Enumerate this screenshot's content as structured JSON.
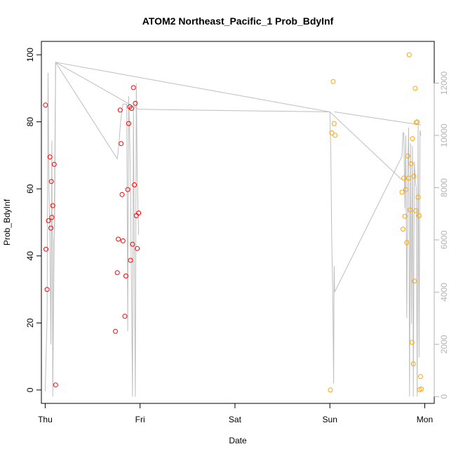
{
  "chart_data": {
    "type": "scatter",
    "title": "ATOM2 Northeast_Pacific_1 Prob_BdyInf",
    "xlabel": "Date",
    "ylabel": "Prob_BdyInf",
    "x_ticks": [
      {
        "label": "Thu",
        "day": 0
      },
      {
        "label": "Fri",
        "day": 1
      },
      {
        "label": "Sat",
        "day": 2
      },
      {
        "label": "Sun",
        "day": 3
      },
      {
        "label": "Mon",
        "day": 4
      }
    ],
    "xlim": [
      -0.04,
      4.1
    ],
    "ylim": [
      -4,
      104
    ],
    "y_ticks": [
      0,
      20,
      40,
      60,
      80,
      100
    ],
    "y2lim": [
      -260,
      13600
    ],
    "y2_ticks": [
      0,
      2000,
      4000,
      6000,
      8000,
      10000,
      12000
    ],
    "grid": false,
    "colors": {
      "red_points": "#ff0000",
      "orange_points": "#ffa500",
      "line": "#bebebe",
      "right_axis": "#b3b3b3"
    },
    "series": [
      {
        "color": "#ff0000",
        "points": [
          [
            0.003,
            85
          ],
          [
            0.008,
            42
          ],
          [
            0.02,
            30
          ],
          [
            0.035,
            50.5
          ],
          [
            0.05,
            69.5
          ],
          [
            0.06,
            48.3
          ],
          [
            0.065,
            62.2
          ],
          [
            0.07,
            51.5
          ],
          [
            0.08,
            55
          ],
          [
            0.095,
            67.3
          ],
          [
            0.11,
            1.5
          ],
          [
            0.74,
            17.5
          ],
          [
            0.76,
            35
          ],
          [
            0.77,
            45
          ],
          [
            0.79,
            83.5
          ],
          [
            0.8,
            73.5
          ],
          [
            0.81,
            58.3
          ],
          [
            0.82,
            44.5
          ],
          [
            0.84,
            22
          ],
          [
            0.85,
            34
          ],
          [
            0.87,
            59.8
          ],
          [
            0.88,
            79.5
          ],
          [
            0.89,
            84.5
          ],
          [
            0.9,
            38.7
          ],
          [
            0.91,
            84
          ],
          [
            0.92,
            43.5
          ],
          [
            0.93,
            90.2
          ],
          [
            0.94,
            61.2
          ],
          [
            0.95,
            85.5
          ],
          [
            0.96,
            52
          ],
          [
            0.97,
            42.2
          ],
          [
            0.985,
            52.8
          ]
        ]
      },
      {
        "color": "#ffa500",
        "points": [
          [
            3.005,
            0
          ],
          [
            3.02,
            76.7
          ],
          [
            3.035,
            92
          ],
          [
            3.045,
            79.5
          ],
          [
            3.055,
            76
          ],
          [
            3.76,
            59
          ],
          [
            3.77,
            48
          ],
          [
            3.78,
            63.2
          ],
          [
            3.79,
            51.8
          ],
          [
            3.8,
            59.8
          ],
          [
            3.81,
            44
          ],
          [
            3.82,
            69.8
          ],
          [
            3.83,
            63.2
          ],
          [
            3.835,
            100
          ],
          [
            3.845,
            53.7
          ],
          [
            3.855,
            67.5
          ],
          [
            3.865,
            14.2
          ],
          [
            3.87,
            75
          ],
          [
            3.88,
            7.8
          ],
          [
            3.885,
            63.8
          ],
          [
            3.89,
            32.5
          ],
          [
            3.9,
            90
          ],
          [
            3.905,
            53.5
          ],
          [
            3.91,
            79.8
          ],
          [
            3.92,
            80
          ],
          [
            3.93,
            57.5
          ],
          [
            3.94,
            52
          ],
          [
            3.945,
            0.1
          ],
          [
            3.955,
            4
          ],
          [
            3.965,
            0.3
          ]
        ]
      }
    ],
    "line_series": {
      "color": "#bebebe",
      "axis": "right",
      "points": [
        [
          0.0,
          200
        ],
        [
          0.02,
          3000
        ],
        [
          0.03,
          12400
        ],
        [
          0.04,
          8000
        ],
        [
          0.05,
          6000
        ],
        [
          0.06,
          2000
        ],
        [
          0.07,
          9800
        ],
        [
          0.08,
          400
        ],
        [
          0.09,
          6000
        ],
        [
          0.1,
          6500
        ],
        [
          0.11,
          12800
        ],
        [
          0.76,
          9100
        ],
        [
          0.78,
          9800
        ],
        [
          0.79,
          10300
        ],
        [
          0.8,
          10700
        ],
        [
          0.82,
          11200
        ],
        [
          0.86,
          11200
        ],
        [
          0.87,
          2500
        ],
        [
          0.88,
          11500
        ],
        [
          0.89,
          10000
        ],
        [
          0.9,
          8000
        ],
        [
          0.91,
          4000
        ],
        [
          0.92,
          0
        ],
        [
          0.93,
          11000
        ],
        [
          0.94,
          5000
        ],
        [
          0.95,
          0
        ],
        [
          0.96,
          12000
        ],
        [
          0.97,
          8500
        ],
        [
          0.985,
          6200
        ],
        [
          0.08,
          0
        ],
        [
          0.11,
          12800
        ],
        [
          3.0,
          10900
        ],
        [
          3.01,
          9200
        ],
        [
          3.02,
          6000
        ],
        [
          3.03,
          4000
        ],
        [
          3.04,
          500
        ],
        [
          3.045,
          5000
        ],
        [
          3.05,
          4000
        ],
        [
          3.76,
          9200
        ],
        [
          3.77,
          10100
        ],
        [
          3.78,
          10100
        ],
        [
          3.79,
          7200
        ],
        [
          3.8,
          10000
        ],
        [
          3.81,
          3000
        ],
        [
          3.82,
          8600
        ],
        [
          3.83,
          10300
        ],
        [
          3.84,
          0
        ],
        [
          3.85,
          9700
        ],
        [
          3.86,
          2800
        ],
        [
          3.87,
          9600
        ],
        [
          3.88,
          0
        ],
        [
          3.89,
          9000
        ],
        [
          3.9,
          8300
        ],
        [
          3.91,
          8000
        ],
        [
          3.92,
          0
        ],
        [
          3.93,
          10500
        ],
        [
          3.94,
          1500
        ],
        [
          3.95,
          10200
        ],
        [
          3.96,
          10000
        ]
      ],
      "connectors": [
        [
          [
            0.11,
            12800
          ],
          [
            0.985,
            11000
          ]
        ],
        [
          [
            0.985,
            11000
          ],
          [
            3.0,
            10900
          ]
        ],
        [
          [
            3.0,
            10900
          ],
          [
            3.76,
            8300
          ]
        ],
        [
          [
            3.05,
            10900
          ],
          [
            3.96,
            10400
          ]
        ]
      ]
    }
  }
}
